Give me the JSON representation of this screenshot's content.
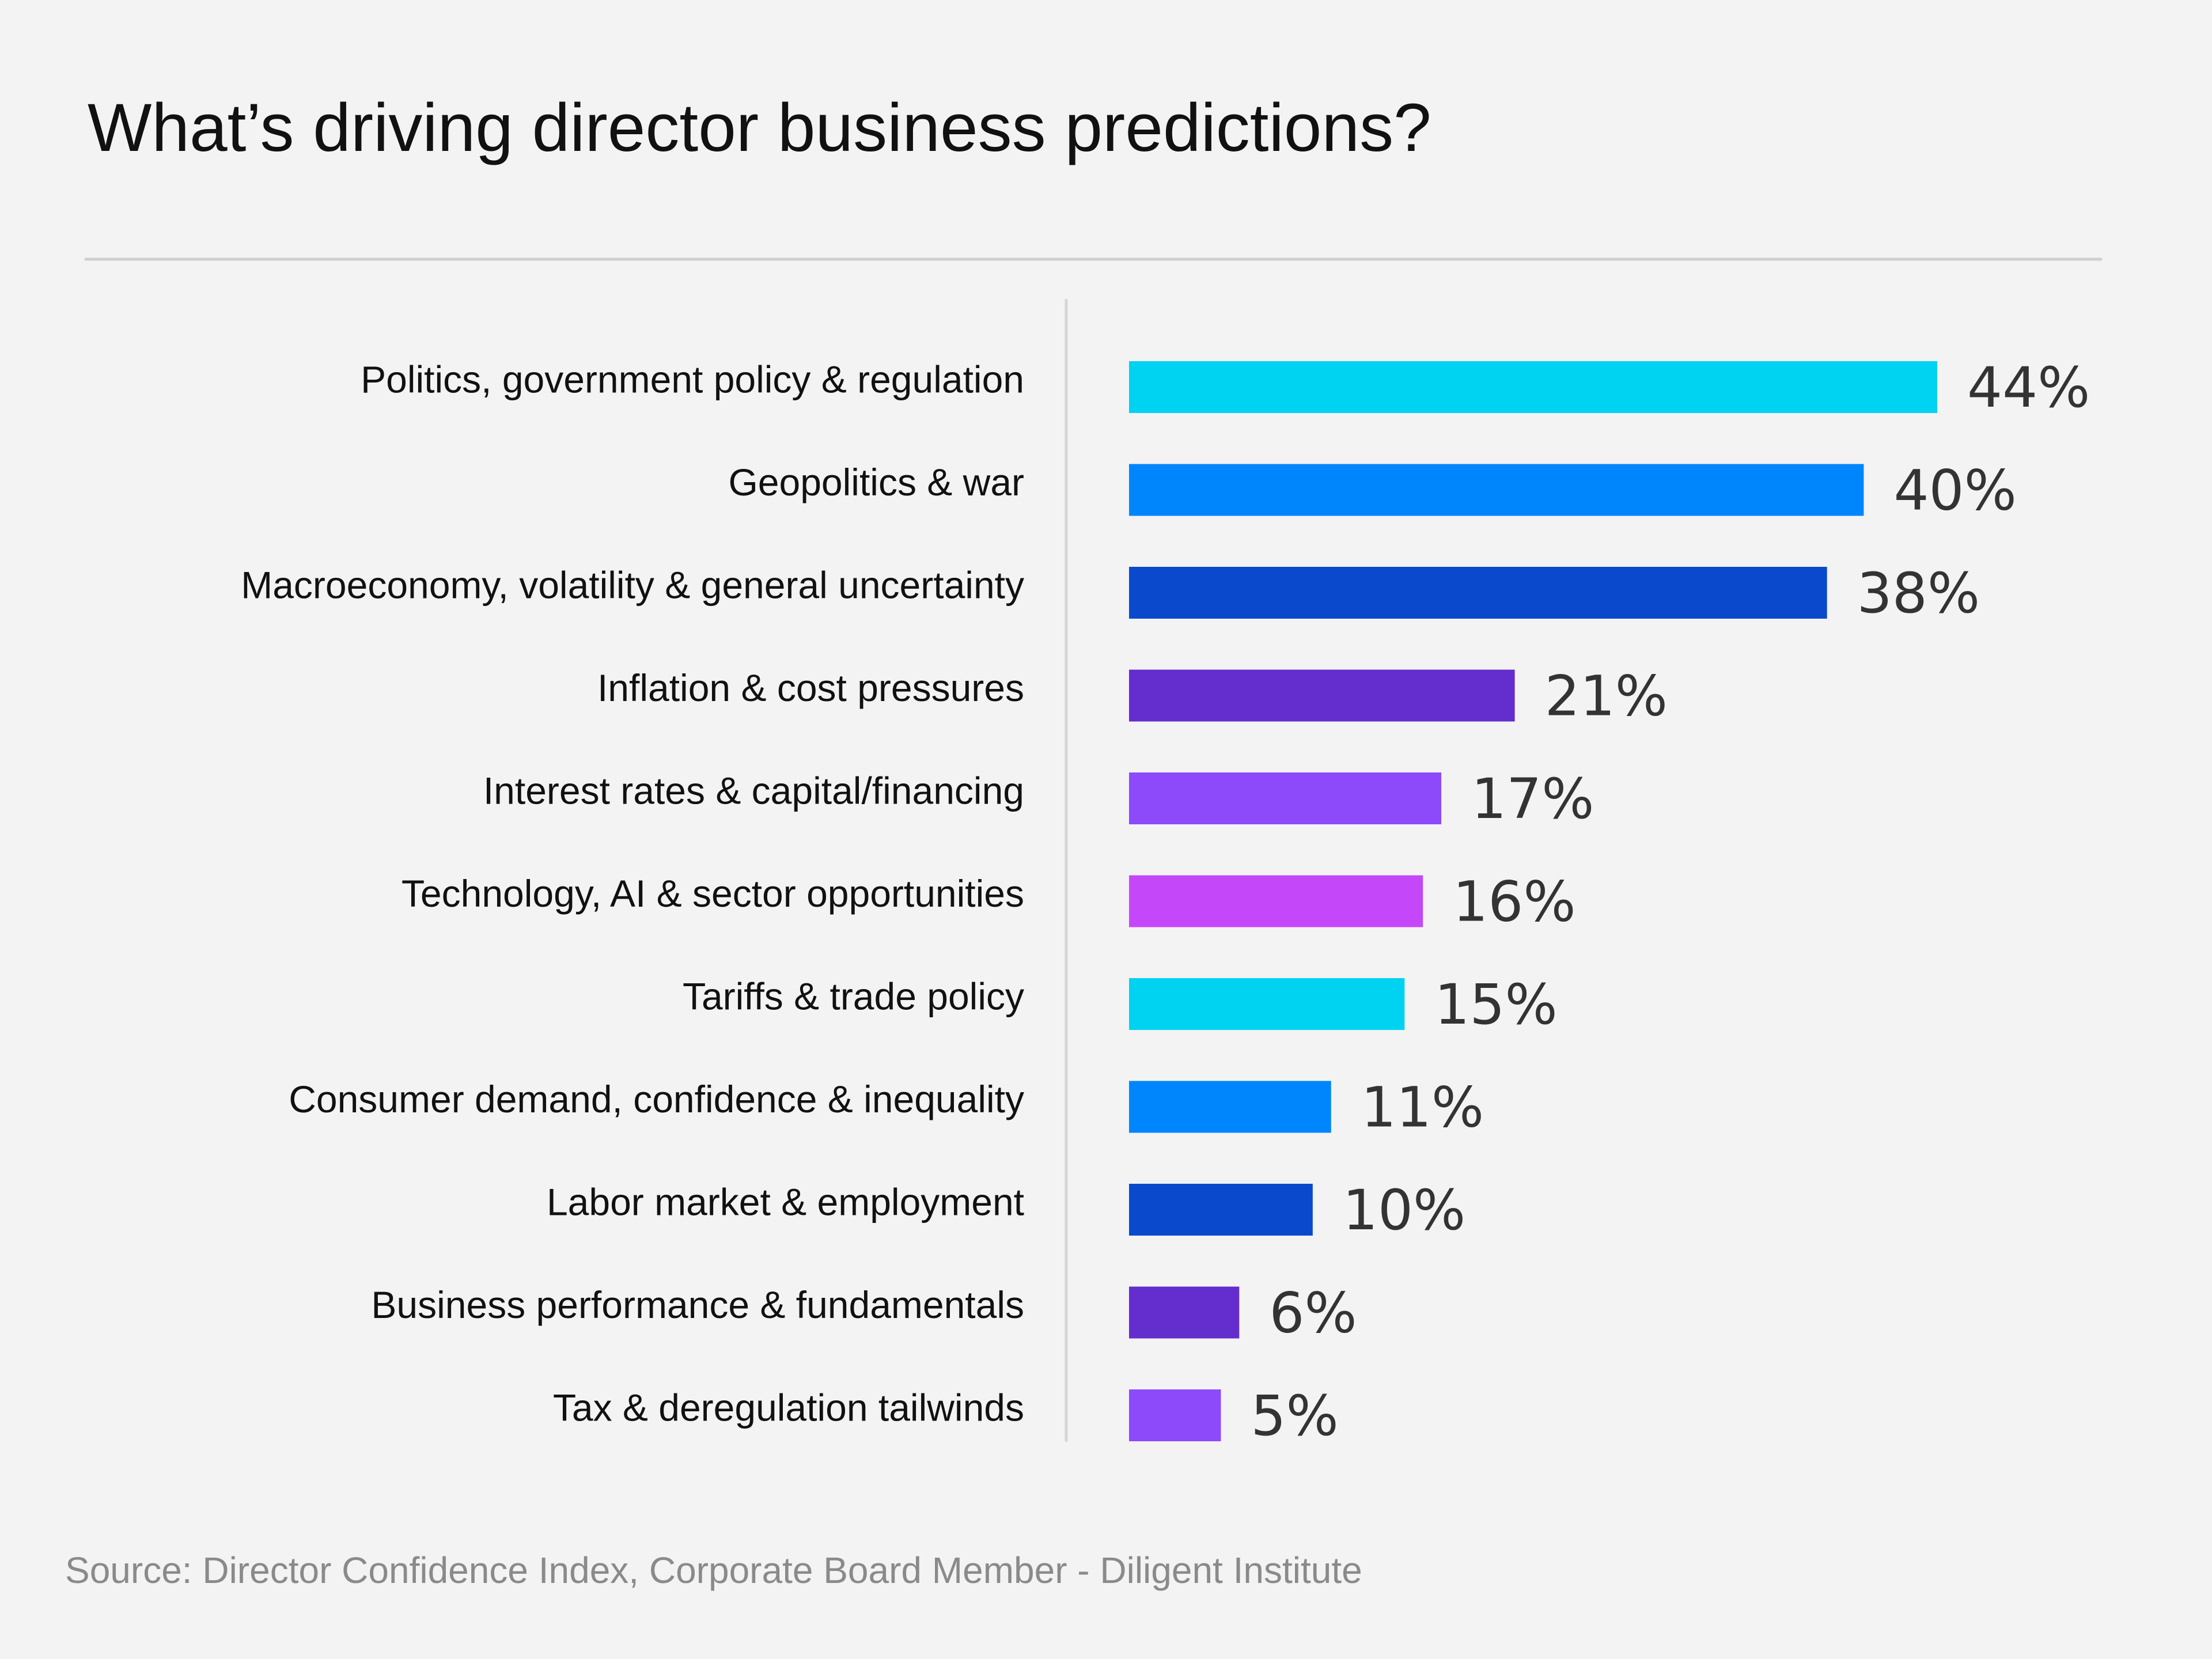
{
  "chart_data": {
    "type": "bar",
    "orientation": "horizontal",
    "title": "What’s driving director business predictions?",
    "source": "Source: Director Confidence Index, Corporate Board Member - Diligent Institute",
    "categories": [
      "Politics, government policy & regulation",
      "Geopolitics & war",
      "Macroeconomy, volatility & general uncertainty",
      "Inflation & cost pressures",
      "Interest rates & capital/financing",
      "Technology, AI & sector opportunities",
      "Tariffs & trade policy",
      "Consumer demand, confidence & inequality",
      "Labor market & employment",
      "Business performance & fundamentals",
      "Tax & deregulation tailwinds"
    ],
    "values": [
      44,
      40,
      38,
      21,
      17,
      16,
      15,
      11,
      10,
      6,
      5
    ],
    "value_labels": [
      "44%",
      "40%",
      "38%",
      "21%",
      "17%",
      "16%",
      "15%",
      "11%",
      "10%",
      "6%",
      "5%"
    ],
    "unit": "%",
    "xlim": [
      0,
      44
    ],
    "grid": false,
    "legend": "none",
    "colors": [
      "#00d2f2",
      "#0086fc",
      "#0a49cc",
      "#642dcd",
      "#8c4afb",
      "#c547fa",
      "#00d2f2",
      "#0086fc",
      "#0a49cc",
      "#642dcd",
      "#8c4afb"
    ],
    "background": "#f3f3f3"
  }
}
